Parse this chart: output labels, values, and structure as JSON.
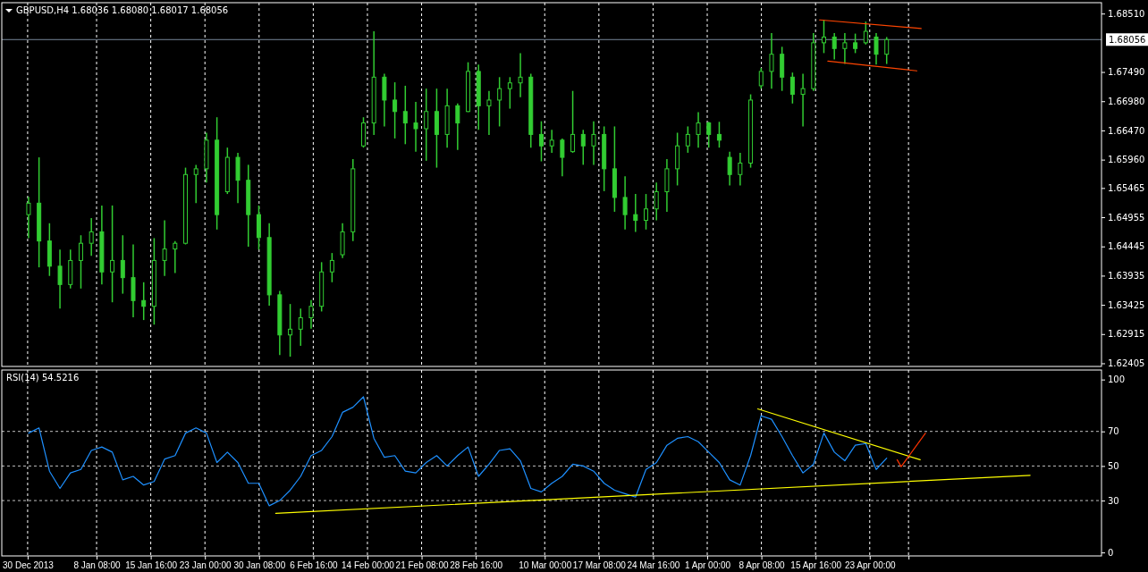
{
  "chart_data": [
    {
      "type": "candlestick",
      "title": "GBPUSD,H4  1.68036 1.68080 1.68017 1.68056",
      "color": "#32cd32",
      "tick_labels": "y",
      "grid": "x",
      "xlim": [
        "2013-12-26T12:00",
        "2014-05-24T09:00"
      ],
      "xticks": [
        {
          "value": "2013-12-30T00:00",
          "label": null
        },
        {
          "value": "2014-01-08T08:00",
          "label": null
        },
        {
          "value": "2014-01-15T16:00",
          "label": null
        },
        {
          "value": "2014-01-23T00:00",
          "label": null
        },
        {
          "value": "2014-01-30T08:00",
          "label": null
        },
        {
          "value": "2014-02-06T16:00",
          "label": null
        },
        {
          "value": "2014-02-14T00:00",
          "label": null
        },
        {
          "value": "2014-02-21T08:00",
          "label": null
        },
        {
          "value": "2014-02-28T16:00",
          "label": null
        },
        {
          "value": "2014-03-10T00:00",
          "label": null
        },
        {
          "value": "2014-03-17T08:00",
          "label": null
        },
        {
          "value": "2014-03-24T16:00",
          "label": null
        },
        {
          "value": "2014-04-01T00:00",
          "label": null
        },
        {
          "value": "2014-04-08T08:00",
          "label": null
        },
        {
          "value": "2014-04-15T16:00",
          "label": null
        },
        {
          "value": "2014-04-23T00:00",
          "label": null
        },
        {
          "value": "2014-04-28T06:00",
          "label": null
        }
      ],
      "ylim": [
        1.6235,
        1.687
      ],
      "yticks": [
        {
          "value": 1.6851,
          "label": "1.68510"
        },
        {
          "value": 1.6749,
          "label": "1.67490"
        },
        {
          "value": 1.6698,
          "label": "1.66980"
        },
        {
          "value": 1.6647,
          "label": "1.66470"
        },
        {
          "value": 1.6596,
          "label": "1.65960"
        },
        {
          "value": 1.65465,
          "label": "1.65465"
        },
        {
          "value": 1.64955,
          "label": "1.64955"
        },
        {
          "value": 1.64445,
          "label": "1.64445"
        },
        {
          "value": 1.63935,
          "label": "1.63935"
        },
        {
          "value": 1.63425,
          "label": "1.63425"
        },
        {
          "value": 1.62915,
          "label": "1.62915"
        },
        {
          "value": 1.62405,
          "label": "1.62405"
        }
      ],
      "ref_lines": [
        {
          "axis": "y",
          "value": 1.68056,
          "label": "1.68056",
          "color": "#778899"
        }
      ],
      "x": [
        "2013-12-30T03:00",
        "2013-12-31T13:00",
        "2014-01-01T23:00",
        "2014-01-03T09:00",
        "2014-01-04T19:00",
        "2014-01-06T05:00",
        "2014-01-07T15:00",
        "2014-01-09T01:00",
        "2014-01-10T11:00",
        "2014-01-11T21:00",
        "2014-01-13T07:00",
        "2014-01-14T17:00",
        "2014-01-16T03:00",
        "2014-01-17T13:00",
        "2014-01-18T23:00",
        "2014-01-20T09:00",
        "2014-01-21T19:00",
        "2014-01-23T05:00",
        "2014-01-24T15:00",
        "2014-01-26T01:00",
        "2014-01-27T11:00",
        "2014-01-28T21:00",
        "2014-01-30T07:00",
        "2014-01-31T17:00",
        "2014-02-02T03:00",
        "2014-02-03T13:00",
        "2014-02-04T23:00",
        "2014-02-06T09:00",
        "2014-02-07T19:00",
        "2014-02-09T05:00",
        "2014-02-10T15:00",
        "2014-02-12T01:00",
        "2014-02-13T11:00",
        "2014-02-14T21:00",
        "2014-02-16T07:00",
        "2014-02-17T17:00",
        "2014-02-19T03:00",
        "2014-02-20T13:00",
        "2014-02-21T23:00",
        "2014-02-23T09:00",
        "2014-02-24T19:00",
        "2014-02-26T05:00",
        "2014-02-27T15:00",
        "2014-03-01T01:00",
        "2014-03-02T11:00",
        "2014-03-03T21:00",
        "2014-03-05T07:00",
        "2014-03-06T17:00",
        "2014-03-08T03:00",
        "2014-03-09T13:00",
        "2014-03-10T23:00",
        "2014-03-12T09:00",
        "2014-03-13T19:00",
        "2014-03-15T05:00",
        "2014-03-16T15:00",
        "2014-03-18T01:00",
        "2014-03-19T11:00",
        "2014-03-20T21:00",
        "2014-03-22T07:00",
        "2014-03-23T17:00",
        "2014-03-25T03:00",
        "2014-03-26T13:00",
        "2014-03-27T23:00",
        "2014-03-29T09:00",
        "2014-03-30T19:00",
        "2014-04-01T05:00",
        "2014-04-02T15:00",
        "2014-04-04T01:00",
        "2014-04-05T11:00",
        "2014-04-06T21:00",
        "2014-04-08T07:00",
        "2014-04-09T17:00",
        "2014-04-11T03:00",
        "2014-04-12T13:00",
        "2014-04-13T23:00",
        "2014-04-15T09:00",
        "2014-04-16T19:00",
        "2014-04-18T05:00",
        "2014-04-19T15:00",
        "2014-04-21T01:00",
        "2014-04-22T11:00",
        "2014-04-23T21:00",
        "2014-04-25T07:00"
      ],
      "ohlc": [
        [
          1.65,
          1.6531,
          1.6459,
          1.652
        ],
        [
          1.652,
          1.66,
          1.6408,
          1.6454
        ],
        [
          1.6454,
          1.6485,
          1.6393,
          1.641
        ],
        [
          1.641,
          1.6439,
          1.6336,
          1.6378
        ],
        [
          1.6378,
          1.6439,
          1.6371,
          1.642
        ],
        [
          1.642,
          1.6464,
          1.6371,
          1.645
        ],
        [
          1.645,
          1.6494,
          1.6428,
          1.647
        ],
        [
          1.647,
          1.6516,
          1.6378,
          1.64
        ],
        [
          1.64,
          1.6516,
          1.6347,
          1.642
        ],
        [
          1.642,
          1.6464,
          1.6362,
          1.639
        ],
        [
          1.639,
          1.6448,
          1.6321,
          1.635
        ],
        [
          1.635,
          1.6382,
          1.6316,
          1.634
        ],
        [
          1.634,
          1.6459,
          1.6308,
          1.642
        ],
        [
          1.642,
          1.649,
          1.6393,
          1.644
        ],
        [
          1.644,
          1.6454,
          1.6398,
          1.645
        ],
        [
          1.645,
          1.6582,
          1.6448,
          1.657
        ],
        [
          1.657,
          1.6587,
          1.652,
          1.658
        ],
        [
          1.658,
          1.6643,
          1.6556,
          1.663
        ],
        [
          1.663,
          1.667,
          1.6474,
          1.65
        ],
        [
          1.654,
          1.6617,
          1.6536,
          1.66
        ],
        [
          1.66,
          1.6608,
          1.652,
          1.656
        ],
        [
          1.656,
          1.6587,
          1.6444,
          1.65
        ],
        [
          1.65,
          1.6516,
          1.6439,
          1.646
        ],
        [
          1.646,
          1.6485,
          1.6341,
          1.636
        ],
        [
          1.636,
          1.6367,
          1.6255,
          1.629
        ],
        [
          1.629,
          1.6344,
          1.6252,
          1.63
        ],
        [
          1.63,
          1.6336,
          1.6271,
          1.632
        ],
        [
          1.632,
          1.6351,
          1.6301,
          1.634
        ],
        [
          1.634,
          1.6417,
          1.6331,
          1.64
        ],
        [
          1.64,
          1.6433,
          1.6382,
          1.642
        ],
        [
          1.643,
          1.6485,
          1.6424,
          1.647
        ],
        [
          1.647,
          1.6597,
          1.6454,
          1.658
        ],
        [
          1.662,
          1.667,
          1.6617,
          1.666
        ],
        [
          1.666,
          1.682,
          1.6639,
          1.674
        ],
        [
          1.674,
          1.6746,
          1.6654,
          1.67
        ],
        [
          1.67,
          1.6731,
          1.6633,
          1.668
        ],
        [
          1.668,
          1.6725,
          1.6623,
          1.666
        ],
        [
          1.666,
          1.6697,
          1.661,
          1.665
        ],
        [
          1.665,
          1.672,
          1.6594,
          1.668
        ],
        [
          1.668,
          1.672,
          1.6582,
          1.664
        ],
        [
          1.664,
          1.672,
          1.6617,
          1.669
        ],
        [
          1.669,
          1.6694,
          1.6613,
          1.666
        ],
        [
          1.668,
          1.6766,
          1.6679,
          1.675
        ],
        [
          1.675,
          1.6762,
          1.6648,
          1.669
        ],
        [
          1.669,
          1.6716,
          1.6639,
          1.67
        ],
        [
          1.67,
          1.674,
          1.6654,
          1.672
        ],
        [
          1.672,
          1.674,
          1.6685,
          1.673
        ],
        [
          1.673,
          1.6782,
          1.6705,
          1.674
        ],
        [
          1.674,
          1.6746,
          1.6617,
          1.664
        ],
        [
          1.664,
          1.6663,
          1.6593,
          1.662
        ],
        [
          1.662,
          1.6648,
          1.6608,
          1.663
        ],
        [
          1.663,
          1.6633,
          1.6567,
          1.66
        ],
        [
          1.661,
          1.6716,
          1.6608,
          1.664
        ],
        [
          1.664,
          1.6648,
          1.6587,
          1.662
        ],
        [
          1.662,
          1.6663,
          1.6587,
          1.664
        ],
        [
          1.664,
          1.6654,
          1.6541,
          1.658
        ],
        [
          1.658,
          1.6654,
          1.6505,
          1.653
        ],
        [
          1.653,
          1.6567,
          1.6474,
          1.65
        ],
        [
          1.65,
          1.6536,
          1.647,
          1.649
        ],
        [
          1.649,
          1.6536,
          1.6474,
          1.651
        ],
        [
          1.651,
          1.6556,
          1.649,
          1.654
        ],
        [
          1.654,
          1.6597,
          1.6505,
          1.658
        ],
        [
          1.658,
          1.6643,
          1.6551,
          1.662
        ],
        [
          1.662,
          1.6654,
          1.6608,
          1.664
        ],
        [
          1.664,
          1.6679,
          1.6617,
          1.666
        ],
        [
          1.666,
          1.6662,
          1.6617,
          1.664
        ],
        [
          1.664,
          1.6662,
          1.6617,
          1.663
        ],
        [
          1.66,
          1.661,
          1.6551,
          1.657
        ],
        [
          1.657,
          1.6608,
          1.6551,
          1.659
        ],
        [
          1.659,
          1.671,
          1.6582,
          1.67
        ],
        [
          1.6725,
          1.6756,
          1.672,
          1.675
        ],
        [
          1.675,
          1.6817,
          1.672,
          1.678
        ],
        [
          1.678,
          1.6793,
          1.6716,
          1.674
        ],
        [
          1.674,
          1.6748,
          1.6694,
          1.671
        ],
        [
          1.671,
          1.6746,
          1.6654,
          1.672
        ],
        [
          1.672,
          1.6817,
          1.6716,
          1.68
        ],
        [
          1.68,
          1.684,
          1.6782,
          1.681
        ],
        [
          1.681,
          1.6817,
          1.6771,
          1.679
        ],
        [
          1.679,
          1.6817,
          1.6763,
          1.68
        ],
        [
          1.68,
          1.6816,
          1.6782,
          1.679
        ],
        [
          1.68,
          1.6837,
          1.6797,
          1.682
        ],
        [
          1.681,
          1.6817,
          1.6762,
          1.678
        ],
        [
          1.678,
          1.681,
          1.6763,
          1.68056
        ]
      ],
      "series": [
        {
          "type": "line",
          "color": "#ff4500",
          "x": [
            "2014-04-16T05:00",
            "2014-04-29T23:00"
          ],
          "values": [
            1.684,
            1.6825
          ]
        },
        {
          "type": "line",
          "color": "#ff4500",
          "x": [
            "2014-04-17T08:00",
            "2014-04-29T09:00"
          ],
          "values": [
            1.6768,
            1.6751
          ]
        }
      ]
    },
    {
      "type": "line",
      "title": "RSI(14) 54.5216",
      "grid": "x",
      "xlim": [
        "2013-12-26T12:00",
        "2014-05-24T09:00"
      ],
      "xticks": [
        {
          "value": "2013-12-30T00:00",
          "label": "30 Dec 2013"
        },
        {
          "value": "2014-01-08T08:00",
          "label": "8 Jan 08:00"
        },
        {
          "value": "2014-01-15T16:00",
          "label": "15 Jan 16:00"
        },
        {
          "value": "2014-01-23T00:00",
          "label": "23 Jan 00:00"
        },
        {
          "value": "2014-01-30T08:00",
          "label": "30 Jan 08:00"
        },
        {
          "value": "2014-02-06T16:00",
          "label": "6 Feb 16:00"
        },
        {
          "value": "2014-02-14T00:00",
          "label": "14 Feb 00:00"
        },
        {
          "value": "2014-02-21T08:00",
          "label": "21 Feb 08:00"
        },
        {
          "value": "2014-02-28T16:00",
          "label": "28 Feb 16:00"
        },
        {
          "value": "2014-03-10T00:00",
          "label": "10 Mar 00:00"
        },
        {
          "value": "2014-03-17T08:00",
          "label": "17 Mar 08:00"
        },
        {
          "value": "2014-03-24T16:00",
          "label": "24 Mar 16:00"
        },
        {
          "value": "2014-04-01T00:00",
          "label": "1 Apr 00:00"
        },
        {
          "value": "2014-04-08T08:00",
          "label": "8 Apr 08:00"
        },
        {
          "value": "2014-04-15T16:00",
          "label": "15 Apr 16:00"
        },
        {
          "value": "2014-04-23T00:00",
          "label": "23 Apr 00:00"
        },
        {
          "value": "2014-04-28T06:00",
          "label": null
        }
      ],
      "ylim": [
        -2,
        105.5
      ],
      "yticks": [
        0,
        30,
        50,
        70,
        100
      ],
      "ref_lines": [
        {
          "axis": "y",
          "value": 70,
          "color": "#c0c0c0",
          "line_style": "dashed"
        },
        {
          "axis": "y",
          "value": 50,
          "color": "#c0c0c0",
          "line_style": "dashed"
        },
        {
          "axis": "y",
          "value": 30,
          "color": "#c0c0c0",
          "line_style": "dashed"
        }
      ],
      "x": [
        "2013-12-30T03:00",
        "2013-12-31T13:00",
        "2014-01-01T23:00",
        "2014-01-03T09:00",
        "2014-01-04T19:00",
        "2014-01-06T05:00",
        "2014-01-07T15:00",
        "2014-01-09T01:00",
        "2014-01-10T11:00",
        "2014-01-11T21:00",
        "2014-01-13T07:00",
        "2014-01-14T17:00",
        "2014-01-16T03:00",
        "2014-01-17T13:00",
        "2014-01-18T23:00",
        "2014-01-20T09:00",
        "2014-01-21T19:00",
        "2014-01-23T05:00",
        "2014-01-24T15:00",
        "2014-01-26T01:00",
        "2014-01-27T11:00",
        "2014-01-28T21:00",
        "2014-01-30T07:00",
        "2014-01-31T17:00",
        "2014-02-02T03:00",
        "2014-02-03T13:00",
        "2014-02-04T23:00",
        "2014-02-06T09:00",
        "2014-02-07T19:00",
        "2014-02-09T05:00",
        "2014-02-10T15:00",
        "2014-02-12T01:00",
        "2014-02-13T11:00",
        "2014-02-14T21:00",
        "2014-02-16T07:00",
        "2014-02-17T17:00",
        "2014-02-19T03:00",
        "2014-02-20T13:00",
        "2014-02-21T23:00",
        "2014-02-23T09:00",
        "2014-02-24T19:00",
        "2014-02-26T05:00",
        "2014-02-27T15:00",
        "2014-03-01T01:00",
        "2014-03-02T11:00",
        "2014-03-03T21:00",
        "2014-03-05T07:00",
        "2014-03-06T17:00",
        "2014-03-08T03:00",
        "2014-03-09T13:00",
        "2014-03-10T23:00",
        "2014-03-12T09:00",
        "2014-03-13T19:00",
        "2014-03-15T05:00",
        "2014-03-16T15:00",
        "2014-03-18T01:00",
        "2014-03-19T11:00",
        "2014-03-20T21:00",
        "2014-03-22T07:00",
        "2014-03-23T17:00",
        "2014-03-25T03:00",
        "2014-03-26T13:00",
        "2014-03-27T23:00",
        "2014-03-29T09:00",
        "2014-03-30T19:00",
        "2014-04-01T05:00",
        "2014-04-02T15:00",
        "2014-04-04T01:00",
        "2014-04-05T11:00",
        "2014-04-06T21:00",
        "2014-04-08T07:00",
        "2014-04-09T17:00",
        "2014-04-11T03:00",
        "2014-04-12T13:00",
        "2014-04-13T23:00",
        "2014-04-15T09:00",
        "2014-04-16T19:00",
        "2014-04-18T05:00",
        "2014-04-19T15:00",
        "2014-04-21T01:00",
        "2014-04-22T11:00",
        "2014-04-23T21:00",
        "2014-04-25T07:00"
      ],
      "series": [
        {
          "color": "#1e90ff",
          "values": [
            69,
            72,
            47,
            37,
            46,
            48,
            59,
            61,
            58,
            42,
            44,
            39,
            41,
            54,
            56,
            69,
            72,
            69,
            52,
            58,
            52,
            40,
            40,
            27,
            30,
            36,
            44,
            56,
            59,
            67,
            81,
            84,
            90,
            66,
            55,
            56,
            47,
            46,
            52,
            56,
            50,
            56,
            61,
            44,
            51,
            59,
            60,
            53,
            37,
            35,
            40,
            44,
            51,
            50,
            47,
            40,
            36,
            34,
            32,
            48,
            52,
            62,
            66,
            67,
            64,
            58,
            52,
            42,
            39,
            56,
            79,
            77,
            67,
            56,
            46,
            51,
            69,
            58,
            53,
            62,
            63,
            48,
            54.5
          ]
        },
        {
          "type": "line",
          "color": "#ffff00",
          "x": [
            "2014-02-01T14:00",
            "2014-05-14T17:00"
          ],
          "values": [
            22.6,
            44.6
          ]
        },
        {
          "type": "line",
          "color": "#ffff00",
          "x": [
            "2014-04-07T20:00",
            "2014-04-29T20:00"
          ],
          "values": [
            83,
            53.6
          ]
        },
        {
          "type": "line",
          "color": "#ff3300",
          "x": [
            "2014-04-26T17:00",
            "2014-04-27T06:00",
            "2014-04-30T13:00"
          ],
          "values": [
            53.6,
            49.6,
            69
          ]
        }
      ]
    }
  ]
}
